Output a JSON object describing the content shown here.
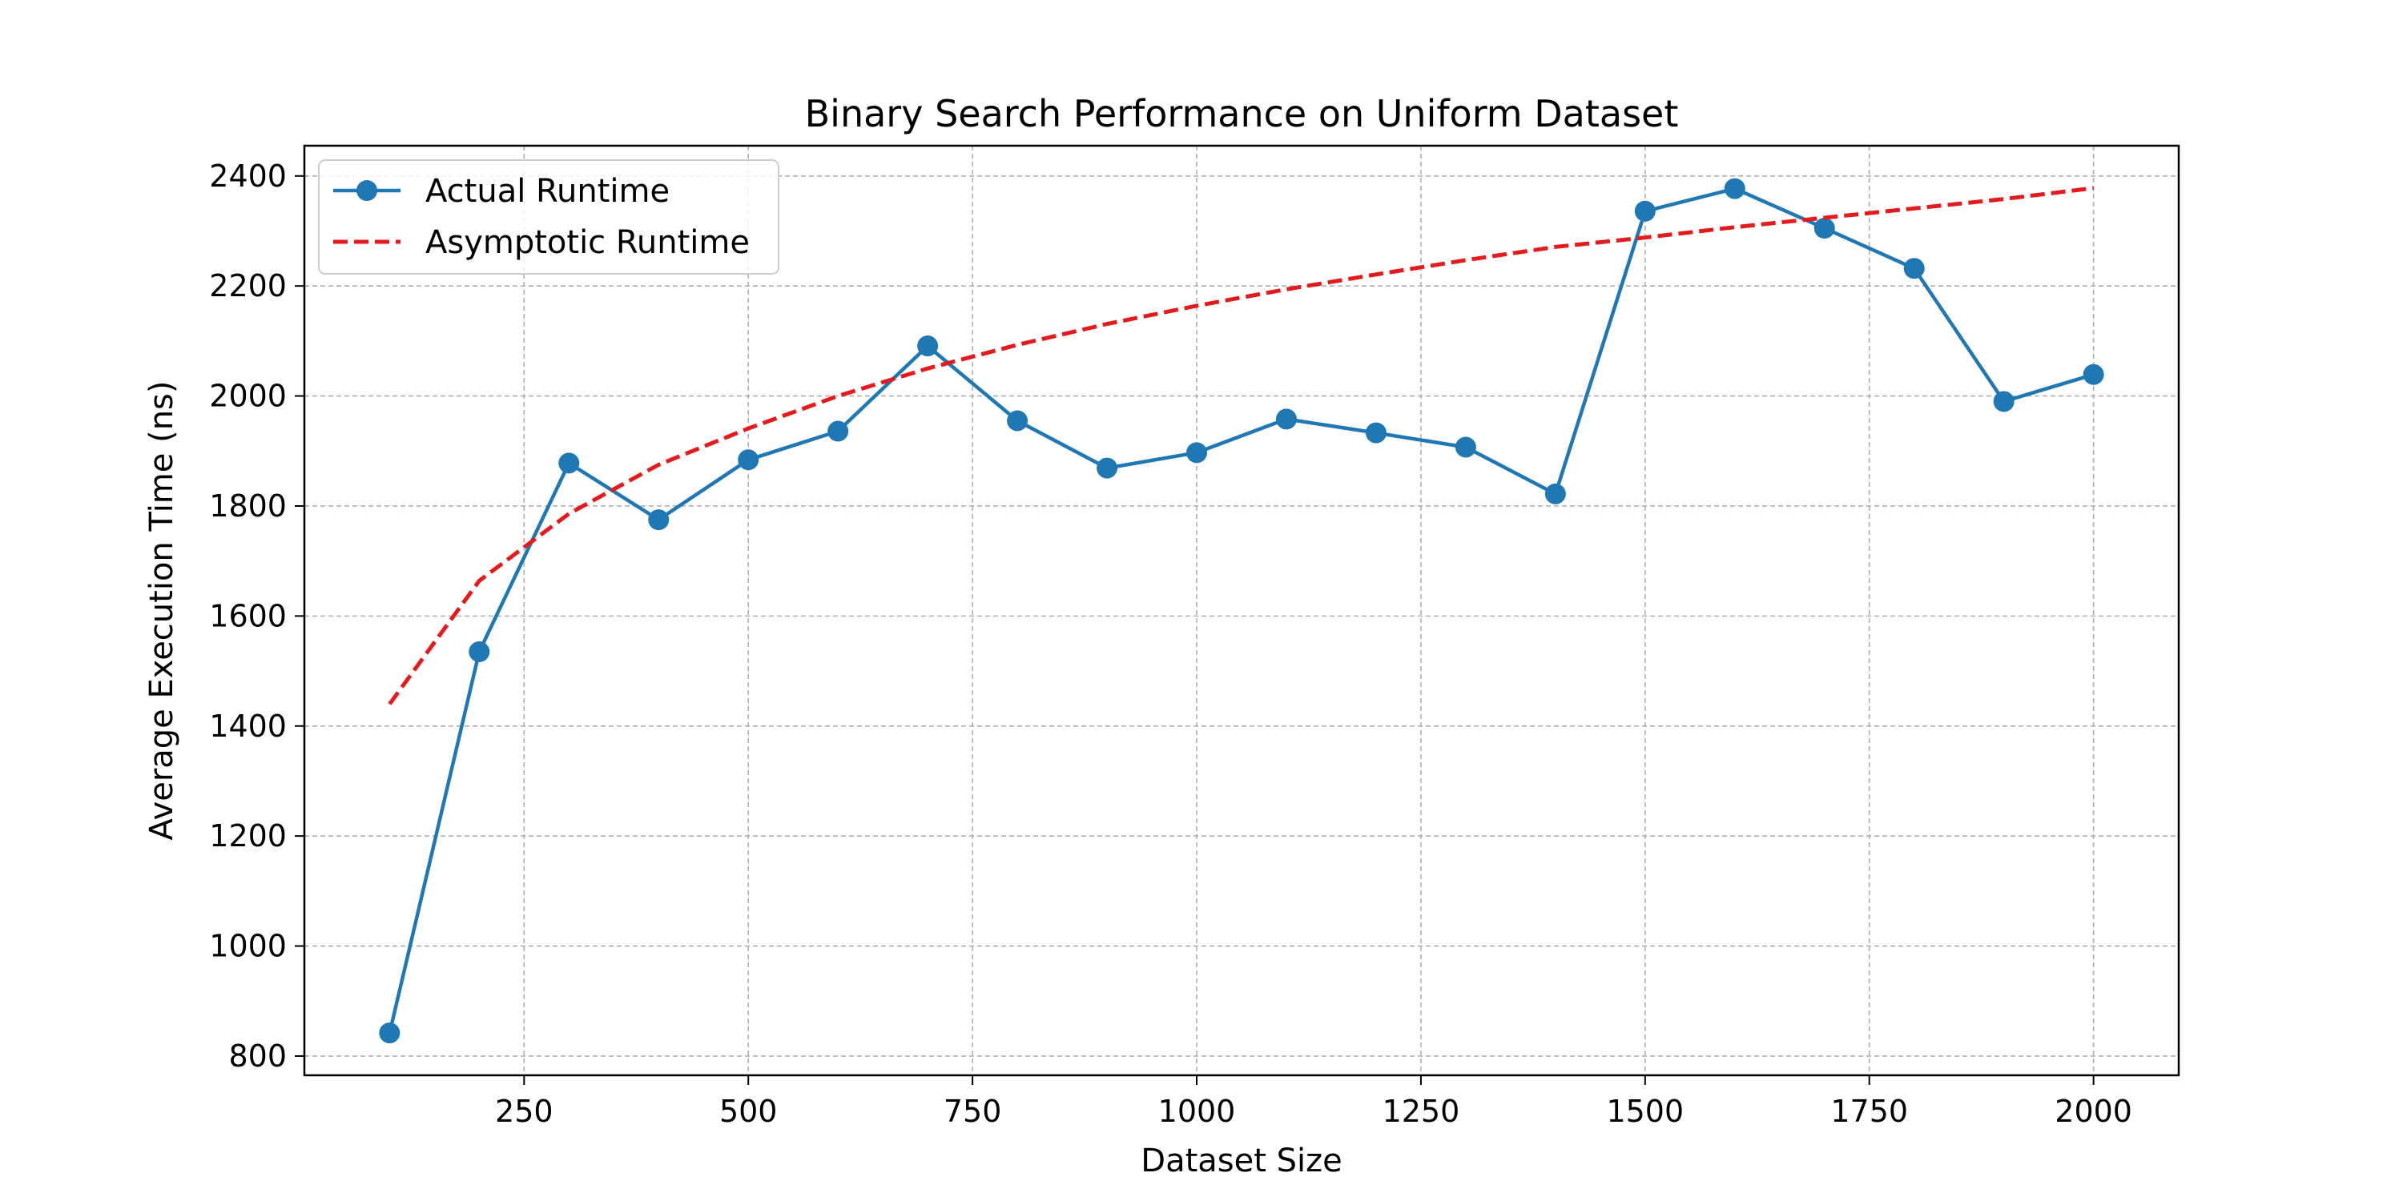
{
  "chart_data": {
    "type": "line",
    "title": "Binary Search Performance on Uniform Dataset",
    "xlabel": "Dataset Size",
    "ylabel": "Average Execution Time (ns)",
    "xlim": [
      5,
      2095
    ],
    "ylim": [
      765,
      2455
    ],
    "xticks": [
      250,
      500,
      750,
      1000,
      1250,
      1500,
      1750,
      2000
    ],
    "yticks": [
      800,
      1000,
      1200,
      1400,
      1600,
      1800,
      2000,
      2200,
      2400
    ],
    "grid": true,
    "legend_position": "upper left",
    "series": [
      {
        "name": "Actual Runtime",
        "style": "solid-with-markers",
        "color": "#1f77b4",
        "x": [
          100,
          200,
          300,
          400,
          500,
          600,
          700,
          800,
          900,
          1000,
          1100,
          1200,
          1300,
          1400,
          1500,
          1600,
          1700,
          1800,
          1900,
          2000
        ],
        "y": [
          842,
          1535,
          1878,
          1775,
          1884,
          1936,
          2091,
          1955,
          1869,
          1897,
          1958,
          1933,
          1907,
          1822,
          2336,
          2377,
          2305,
          2232,
          1990,
          2039
        ]
      },
      {
        "name": "Asymptotic Runtime",
        "style": "dashed",
        "color": "#e41a1c",
        "x": [
          100,
          200,
          300,
          400,
          500,
          600,
          700,
          800,
          900,
          1000,
          1100,
          1200,
          1300,
          1400,
          1500,
          1600,
          1700,
          1800,
          1900,
          2000
        ],
        "y": [
          1440,
          1664,
          1786,
          1875,
          1941,
          2000,
          2050,
          2093,
          2131,
          2164,
          2194,
          2221,
          2247,
          2271,
          2288,
          2307,
          2324,
          2341,
          2358,
          2378
        ]
      }
    ]
  }
}
